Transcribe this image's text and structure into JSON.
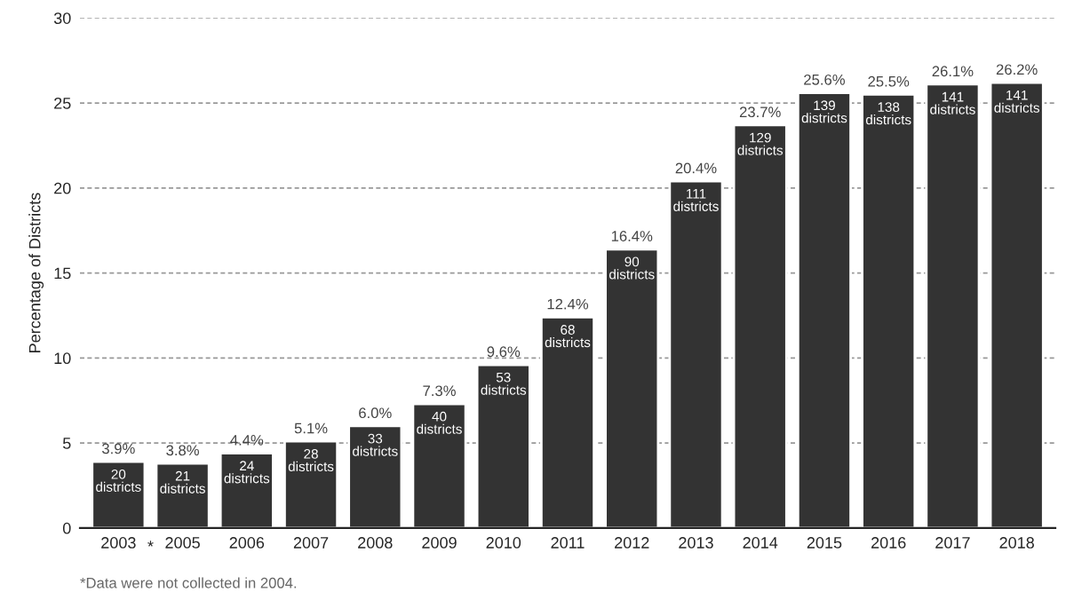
{
  "chart_data": {
    "type": "bar",
    "ylabel": "Percentage of Districts",
    "categories": [
      "2003",
      "2005",
      "2006",
      "2007",
      "2008",
      "2009",
      "2010",
      "2011",
      "2012",
      "2013",
      "2014",
      "2015",
      "2016",
      "2017",
      "2018"
    ],
    "values": [
      3.9,
      3.8,
      4.4,
      5.1,
      6.0,
      7.3,
      9.6,
      12.4,
      16.4,
      20.4,
      23.7,
      25.6,
      25.5,
      26.1,
      26.2
    ],
    "value_labels": [
      "3.9%",
      "3.8%",
      "4.4%",
      "5.1%",
      "6.0%",
      "7.3%",
      "9.6%",
      "12.4%",
      "16.4%",
      "20.4%",
      "23.7%",
      "25.6%",
      "25.5%",
      "26.1%",
      "26.2%"
    ],
    "color": "#333333",
    "ylim": [
      0,
      30
    ],
    "yticks": [
      0,
      5,
      10,
      15,
      20,
      25,
      30
    ],
    "grid": "y",
    "annotations": [
      "*",
      "*Data were not collected in 2004.",
      {
        "text": "20\ndistricts",
        "x": "2003",
        "y": 3.9
      },
      {
        "text": "21\ndistricts",
        "x": "2005",
        "y": 3.8
      },
      {
        "text": "24\ndistricts",
        "x": "2006",
        "y": 4.4
      },
      {
        "text": "28\ndistricts",
        "x": "2007",
        "y": 5.1
      },
      {
        "text": "33\ndistricts",
        "x": "2008",
        "y": 6.0
      },
      {
        "text": "40\ndistricts",
        "x": "2009",
        "y": 7.3
      },
      {
        "text": "53\ndistricts",
        "x": "2010",
        "y": 9.6
      },
      {
        "text": "68\ndistricts",
        "x": "2011",
        "y": 12.4
      },
      {
        "text": "90\ndistricts",
        "x": "2012",
        "y": 16.4
      },
      {
        "text": "111\ndistricts",
        "x": "2013",
        "y": 20.4
      },
      {
        "text": "129\ndistricts",
        "x": "2014",
        "y": 23.7
      },
      {
        "text": "139\ndistricts",
        "x": "2015",
        "y": 25.6
      },
      {
        "text": "138\ndistricts",
        "x": "2016",
        "y": 25.5
      },
      {
        "text": "141\ndistricts",
        "x": "2017",
        "y": 26.1
      },
      {
        "text": "141\ndistricts",
        "x": "2018",
        "y": 26.2
      }
    ]
  }
}
